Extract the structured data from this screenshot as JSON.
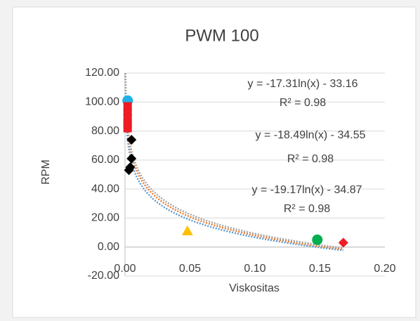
{
  "chart_data": {
    "type": "scatter",
    "title": "PWM 100",
    "x_label": "Viskositas",
    "y_label": "RPM",
    "xlim": [
      0,
      0.2
    ],
    "ylim": [
      -20,
      120
    ],
    "xticks": [
      {
        "value": 0,
        "label": "0.00"
      },
      {
        "value": 0.05,
        "label": "0.05"
      },
      {
        "value": 0.1,
        "label": "0.10"
      },
      {
        "value": 0.15,
        "label": "0.15"
      },
      {
        "value": 0.2,
        "label": "0.20"
      }
    ],
    "yticks": [
      {
        "value": -20,
        "label": "-20.00"
      },
      {
        "value": 0,
        "label": "0.00"
      },
      {
        "value": 20,
        "label": "20.00"
      },
      {
        "value": 40,
        "label": "40.00"
      },
      {
        "value": 60,
        "label": "60.00"
      },
      {
        "value": 80,
        "label": "80.00"
      },
      {
        "value": 100,
        "label": "100.00"
      },
      {
        "value": 120,
        "label": "120.00"
      }
    ],
    "grid": true,
    "series": [
      {
        "color": "#1fb0e6",
        "marker": "circle",
        "x": [
          0.002
        ],
        "values": [
          101
        ]
      },
      {
        "color": "#ee1c25",
        "marker": "square",
        "x": [
          0.002,
          0.002,
          0.002,
          0.002,
          0.002
        ],
        "values": [
          97,
          93,
          89,
          85,
          82
        ]
      },
      {
        "color": "#000000",
        "marker": "diamond",
        "x": [
          0.005,
          0.005,
          0.004,
          0.003
        ],
        "values": [
          74,
          61,
          55,
          53
        ]
      },
      {
        "color": "#ffc000",
        "marker": "triangle",
        "x": [
          0.048
        ],
        "values": [
          11
        ]
      },
      {
        "color": "#00b050",
        "marker": "circle",
        "x": [
          0.148
        ],
        "values": [
          5
        ]
      },
      {
        "color": "#ee1c25",
        "marker": "diamond",
        "x": [
          0.168
        ],
        "values": [
          3
        ]
      }
    ],
    "trendlines": [
      {
        "color": "#5b9bd5",
        "equation": "y = -17.31ln(x) - 33.16",
        "r2": "R² = 0.98"
      },
      {
        "color": "#ed7d31",
        "equation": "y = -18.49ln(x) - 34.55",
        "r2": "R² = 0.98"
      },
      {
        "color": "#a5a5a5",
        "equation": "y = -19.17ln(x) - 34.87",
        "r2": "R² = 0.98"
      }
    ]
  }
}
